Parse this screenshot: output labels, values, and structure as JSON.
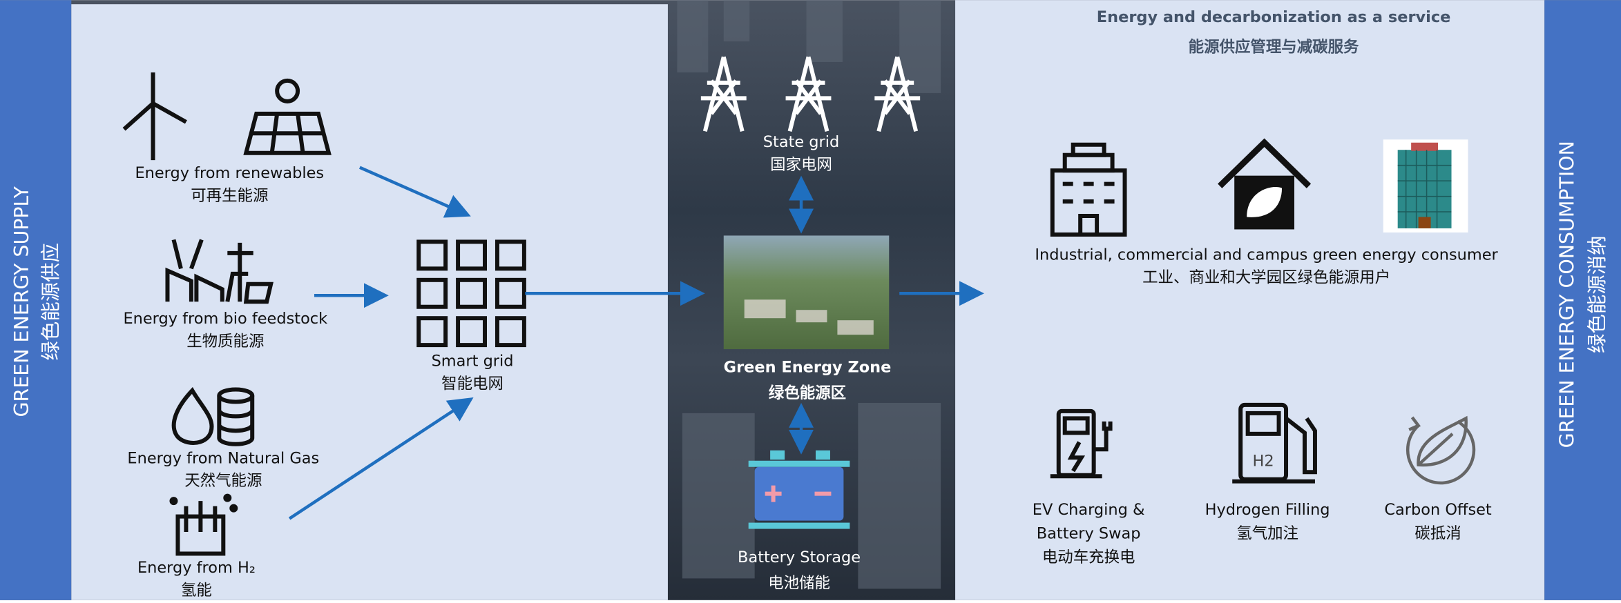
{
  "supply_sidebar": {
    "en": "GREEN ENERGY SUPPLY",
    "zh": "绿色能源供应"
  },
  "consumption_sidebar": {
    "en": "GREEN  ENERGY CONSUMPTION",
    "zh": "绿色能源消纳"
  },
  "sources": [
    {
      "en": "Energy from renewables",
      "zh": "可再生能源"
    },
    {
      "en": "Energy from bio feedstock",
      "zh": "生物质能源"
    },
    {
      "en": "Energy from Natural Gas",
      "zh": "天然气能源"
    },
    {
      "en": "Energy from H₂",
      "zh": "氢能"
    }
  ],
  "smart_grid": {
    "en": "Smart grid",
    "zh": "智能电网"
  },
  "state_grid": {
    "en": "State grid",
    "zh": "国家电网"
  },
  "green_zone": {
    "en": "Green Energy Zone",
    "zh": "绿色能源区"
  },
  "battery": {
    "en": "Battery Storage",
    "zh": "电池储能"
  },
  "service": {
    "title": "Energy and decarbonization as a service",
    "subtitle": "能源供应管理与减碳服务"
  },
  "consumer": {
    "en": "Industrial, commercial and campus green energy consumer",
    "zh": "工业、商业和大学园区绿色能源用户"
  },
  "services": [
    {
      "lines": [
        "EV Charging &",
        "Battery Swap",
        "电动车充换电"
      ]
    },
    {
      "lines": [
        "Hydrogen Filling",
        "氢气加注"
      ],
      "icon_label": "H2"
    },
    {
      "lines": [
        "Carbon Offset",
        "碳抵消"
      ]
    }
  ]
}
